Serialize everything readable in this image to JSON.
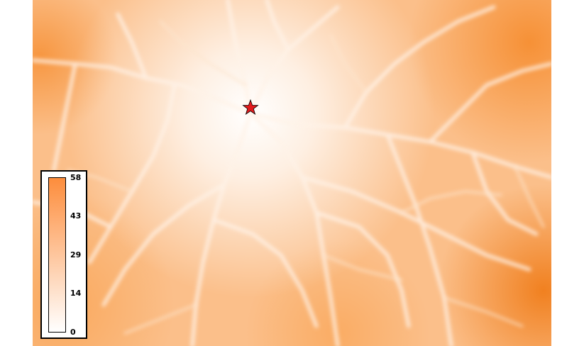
{
  "map": {
    "colors": {
      "low": "#ffffff",
      "high": "#fd8d3c",
      "peak": "#f07d1a",
      "marker": "#e31a1c"
    },
    "marker_icon": "star-icon"
  },
  "legend": {
    "max": "58",
    "ticks": [
      "58",
      "43",
      "29",
      "14",
      "0"
    ]
  }
}
